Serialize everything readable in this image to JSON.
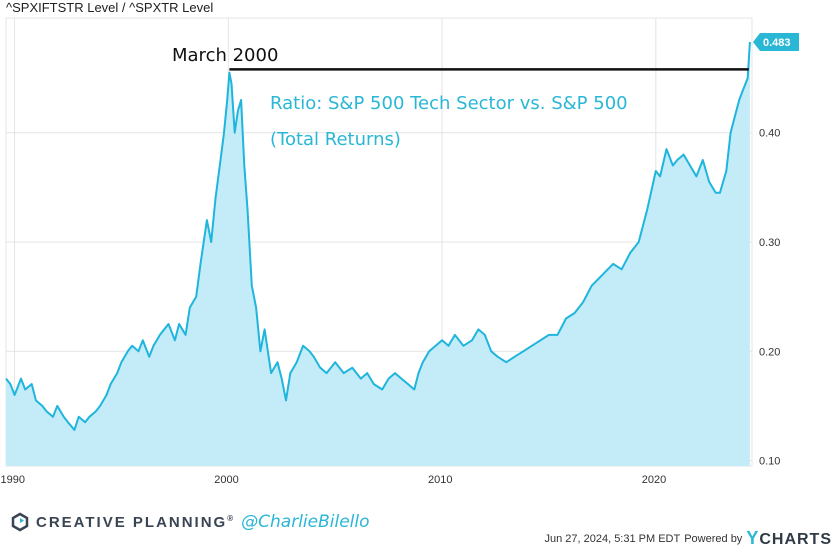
{
  "chart_data": {
    "type": "area",
    "title": "^SPXIFTSTR Level / ^SPXTR Level",
    "xlim": [
      1989.6,
      2024.5
    ],
    "ylim": [
      0.095,
      0.505
    ],
    "x_ticks": [
      1990,
      2000,
      2010,
      2020
    ],
    "x_tick_labels": [
      "1990",
      "2000",
      "2010",
      "2020"
    ],
    "y_ticks": [
      0.1,
      0.2,
      0.3,
      0.4
    ],
    "y_tick_labels": [
      "0.10",
      "0.20",
      "0.30",
      "0.40"
    ],
    "last_value": 0.483,
    "last_value_label": "0.483",
    "reference_line": {
      "value": 0.458,
      "from_x": 2000.05,
      "to_x": 2024.35
    },
    "annotations": {
      "march_label": "March 2000",
      "ratio_line1": "Ratio: S&P 500 Tech Sector vs. S&P 500",
      "ratio_line2": "(Total Returns)"
    },
    "colors": {
      "line": "#1fb5dc",
      "fill": "#c3ecf8",
      "grid": "#e4e4e4",
      "accent": "#2ab7d6"
    },
    "series": [
      {
        "name": "^SPXIFTSTR Level / ^SPXTR Level",
        "x": [
          1989.6,
          1989.8,
          1990.0,
          1990.3,
          1990.5,
          1990.8,
          1991.0,
          1991.3,
          1991.5,
          1991.8,
          1992.0,
          1992.3,
          1992.5,
          1992.8,
          1993.0,
          1993.3,
          1993.5,
          1993.8,
          1994.0,
          1994.3,
          1994.5,
          1994.8,
          1995.0,
          1995.3,
          1995.5,
          1995.8,
          1996.0,
          1996.3,
          1996.5,
          1996.8,
          1997.0,
          1997.2,
          1997.5,
          1997.7,
          1998.0,
          1998.2,
          1998.5,
          1998.7,
          1999.0,
          1999.2,
          1999.4,
          1999.6,
          1999.8,
          1999.95,
          2000.05,
          2000.15,
          2000.3,
          2000.45,
          2000.6,
          2000.75,
          2000.9,
          2001.1,
          2001.3,
          2001.5,
          2001.7,
          2002.0,
          2002.3,
          2002.5,
          2002.7,
          2002.9,
          2003.2,
          2003.5,
          2003.8,
          2004.0,
          2004.3,
          2004.6,
          2005.0,
          2005.4,
          2005.8,
          2006.2,
          2006.5,
          2006.8,
          2007.2,
          2007.5,
          2007.8,
          2008.1,
          2008.4,
          2008.7,
          2008.9,
          2009.1,
          2009.4,
          2009.7,
          2010.0,
          2010.3,
          2010.6,
          2011.0,
          2011.4,
          2011.7,
          2012.0,
          2012.3,
          2012.6,
          2013.0,
          2013.4,
          2013.8,
          2014.2,
          2014.6,
          2015.0,
          2015.4,
          2015.8,
          2016.2,
          2016.6,
          2017.0,
          2017.5,
          2018.0,
          2018.4,
          2018.8,
          2019.2,
          2019.6,
          2020.0,
          2020.2,
          2020.5,
          2020.8,
          2021.0,
          2021.3,
          2021.6,
          2021.9,
          2022.2,
          2022.5,
          2022.8,
          2023.0,
          2023.3,
          2023.5,
          2023.7,
          2023.9,
          2024.1,
          2024.3,
          2024.4
        ],
        "values": [
          0.175,
          0.17,
          0.16,
          0.175,
          0.165,
          0.17,
          0.155,
          0.15,
          0.145,
          0.14,
          0.15,
          0.14,
          0.135,
          0.128,
          0.14,
          0.135,
          0.14,
          0.145,
          0.15,
          0.16,
          0.17,
          0.18,
          0.19,
          0.2,
          0.205,
          0.2,
          0.21,
          0.195,
          0.205,
          0.215,
          0.22,
          0.225,
          0.21,
          0.225,
          0.215,
          0.24,
          0.25,
          0.28,
          0.32,
          0.3,
          0.34,
          0.37,
          0.4,
          0.43,
          0.455,
          0.445,
          0.4,
          0.42,
          0.43,
          0.37,
          0.33,
          0.26,
          0.24,
          0.2,
          0.22,
          0.18,
          0.19,
          0.175,
          0.155,
          0.18,
          0.19,
          0.205,
          0.2,
          0.195,
          0.185,
          0.18,
          0.19,
          0.18,
          0.185,
          0.175,
          0.18,
          0.17,
          0.165,
          0.175,
          0.18,
          0.175,
          0.17,
          0.165,
          0.18,
          0.19,
          0.2,
          0.205,
          0.21,
          0.205,
          0.215,
          0.205,
          0.21,
          0.22,
          0.215,
          0.2,
          0.195,
          0.19,
          0.195,
          0.2,
          0.205,
          0.21,
          0.215,
          0.215,
          0.23,
          0.235,
          0.245,
          0.26,
          0.27,
          0.28,
          0.275,
          0.29,
          0.3,
          0.33,
          0.365,
          0.36,
          0.385,
          0.37,
          0.375,
          0.38,
          0.37,
          0.36,
          0.375,
          0.355,
          0.345,
          0.345,
          0.365,
          0.4,
          0.415,
          0.43,
          0.44,
          0.45,
          0.483
        ]
      }
    ]
  },
  "footer": {
    "brand": "CREATIVE PLANNING",
    "registered": "®",
    "handle": "@CharlieBilello",
    "timestamp": "Jun 27, 2024, 5:31 PM EDT",
    "powered_by": "Powered by",
    "ycharts_y": "Y",
    "ycharts_rest": "CHARTS"
  }
}
